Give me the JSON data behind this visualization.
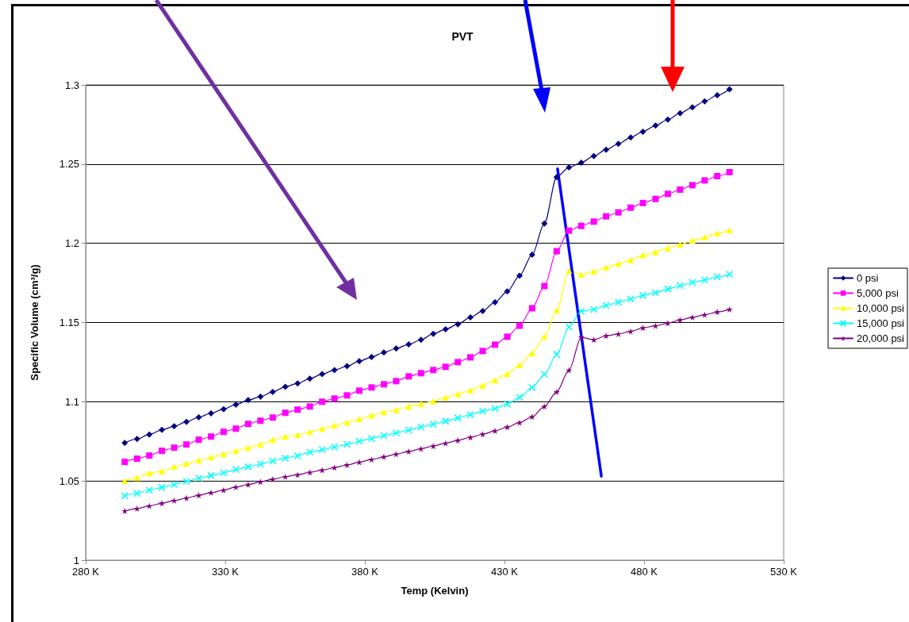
{
  "chart_data": {
    "type": "line",
    "title": "PVT",
    "xlabel": "Temp (Kelvin)",
    "ylabel": "Specific Volume (cm³/g)",
    "x": [
      294.0,
      298.4,
      302.8,
      307.3,
      311.7,
      316.1,
      320.5,
      324.9,
      329.4,
      333.8,
      338.2,
      342.6,
      347.0,
      351.5,
      355.9,
      360.3,
      364.7,
      369.1,
      373.6,
      378.0,
      382.4,
      386.8,
      391.2,
      395.7,
      400.1,
      404.5,
      408.9,
      413.3,
      417.8,
      422.2,
      426.6,
      431.0,
      435.4,
      439.9,
      444.3,
      448.7,
      453.1,
      457.5,
      462.0,
      466.4,
      470.8,
      475.2,
      479.6,
      484.1,
      488.5,
      492.9,
      497.3,
      501.7,
      506.2,
      510.6
    ],
    "series": [
      {
        "name": "0 psi",
        "color": "#000080",
        "marker": "diamond",
        "values": [
          1.074,
          1.0765,
          1.0793,
          1.0822,
          1.0845,
          1.0873,
          1.0902,
          1.0927,
          1.0953,
          1.0982,
          1.101,
          1.1032,
          1.1062,
          1.1094,
          1.1116,
          1.1146,
          1.1174,
          1.12,
          1.1224,
          1.1256,
          1.1282,
          1.1311,
          1.1336,
          1.1362,
          1.1391,
          1.1429,
          1.1457,
          1.1489,
          1.1533,
          1.1573,
          1.1628,
          1.1696,
          1.1795,
          1.1928,
          1.2125,
          1.2418,
          1.2479,
          1.2509,
          1.2551,
          1.2591,
          1.2628,
          1.2668,
          1.2705,
          1.2743,
          1.2781,
          1.2821,
          1.2858,
          1.2896,
          1.2935,
          1.2973
        ]
      },
      {
        "name": "5,000 psi",
        "color": "#ff00ff",
        "marker": "square",
        "values": [
          1.062,
          1.064,
          1.066,
          1.069,
          1.071,
          1.073,
          1.076,
          1.078,
          1.081,
          1.083,
          1.086,
          1.088,
          1.09,
          1.093,
          1.095,
          1.097,
          1.1,
          1.102,
          1.104,
          1.107,
          1.109,
          1.111,
          1.113,
          1.116,
          1.118,
          1.12,
          1.122,
          1.125,
          1.128,
          1.132,
          1.136,
          1.141,
          1.148,
          1.159,
          1.173,
          1.195,
          1.208,
          1.211,
          1.2137,
          1.217,
          1.2195,
          1.2225,
          1.2254,
          1.228,
          1.2312,
          1.2339,
          1.2367,
          1.2397,
          1.2424,
          1.2449
        ]
      },
      {
        "name": "10,000 psi",
        "color": "#ffff00",
        "marker": "triangle",
        "values": [
          1.05,
          1.052,
          1.055,
          1.056,
          1.059,
          1.061,
          1.063,
          1.065,
          1.067,
          1.069,
          1.071,
          1.073,
          1.076,
          1.078,
          1.079,
          1.081,
          1.083,
          1.085,
          1.087,
          1.089,
          1.0913,
          1.0935,
          1.0948,
          1.097,
          1.0987,
          1.1003,
          1.1027,
          1.1048,
          1.1073,
          1.1102,
          1.1136,
          1.1177,
          1.1232,
          1.1307,
          1.1411,
          1.1578,
          1.1828,
          1.1803,
          1.1822,
          1.1847,
          1.187,
          1.1895,
          1.1925,
          1.1945,
          1.197,
          1.1992,
          1.2017,
          1.2038,
          1.2063,
          1.2083
        ]
      },
      {
        "name": "15,000 psi",
        "color": "#00ffff",
        "marker": "cross",
        "values": [
          1.0406,
          1.0422,
          1.0442,
          1.0459,
          1.0477,
          1.0497,
          1.0517,
          1.0534,
          1.0551,
          1.0572,
          1.0589,
          1.0606,
          1.0626,
          1.0644,
          1.0659,
          1.0681,
          1.0697,
          1.0714,
          1.0731,
          1.0751,
          1.0768,
          1.0786,
          1.0803,
          1.0821,
          1.084,
          1.0858,
          1.0877,
          1.0897,
          1.0918,
          1.094,
          1.0957,
          1.0985,
          1.1028,
          1.109,
          1.1173,
          1.1299,
          1.1471,
          1.1571,
          1.1583,
          1.1608,
          1.1628,
          1.1649,
          1.1671,
          1.1688,
          1.1711,
          1.1733,
          1.1753,
          1.1769,
          1.1788,
          1.1804
        ]
      },
      {
        "name": "20,000 psi",
        "color": "#800080",
        "marker": "star",
        "values": [
          1.031,
          1.0325,
          1.0342,
          1.0359,
          1.0376,
          1.0392,
          1.0409,
          1.0426,
          1.0442,
          1.0461,
          1.0477,
          1.0494,
          1.0511,
          1.0526,
          1.0539,
          1.0554,
          1.0568,
          1.0584,
          1.0601,
          1.0618,
          1.0635,
          1.0652,
          1.0669,
          1.0686,
          1.0703,
          1.072,
          1.0738,
          1.0756,
          1.0775,
          1.0795,
          1.0816,
          1.084,
          1.0868,
          1.0905,
          1.097,
          1.1062,
          1.1199,
          1.1407,
          1.1391,
          1.1416,
          1.1428,
          1.1444,
          1.1466,
          1.1479,
          1.1496,
          1.1516,
          1.1533,
          1.1549,
          1.1566,
          1.1583
        ]
      },
      {
        "type": "line",
        "color": "#0000ff",
        "marker": "none",
        "x": [
          449.0,
          464.7
        ],
        "values": [
          1.247,
          1.053
        ]
      }
    ],
    "xlim": [
      280,
      530
    ],
    "xticks": [
      {
        "value": 280,
        "label": "280 K"
      },
      {
        "value": 330,
        "label": "330 K"
      },
      {
        "value": 380,
        "label": "380 K"
      },
      {
        "value": 430,
        "label": "430 K"
      },
      {
        "value": 480,
        "label": "480 K"
      },
      {
        "value": 530,
        "label": "530 K"
      }
    ],
    "ylim": [
      1,
      1.3
    ],
    "yticks": [
      1,
      1.05,
      1.1,
      1.15,
      1.2,
      1.25,
      1.3
    ],
    "grid": "y",
    "legend": "right"
  }
}
